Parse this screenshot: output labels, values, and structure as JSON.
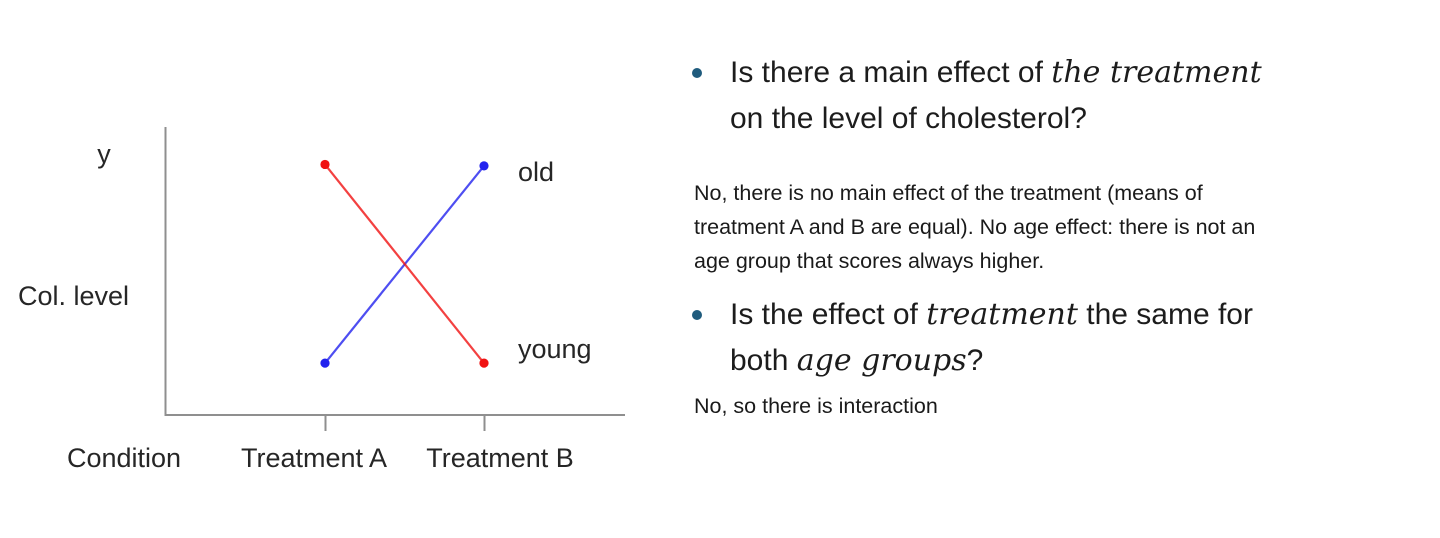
{
  "chart_data": {
    "type": "line",
    "title": "",
    "xlabel": "Condition",
    "ylabel": "Col. level",
    "y_axis_top_label": "y",
    "categories": [
      "Treatment A",
      "Treatment B"
    ],
    "series": [
      {
        "name": "old",
        "color": "#2222ee",
        "values": [
          0.18,
          0.865
        ]
      },
      {
        "name": "young",
        "color": "#f01212",
        "values": [
          0.87,
          0.18
        ]
      }
    ],
    "ylim": [
      0,
      1
    ],
    "grid": false,
    "legend_position": "labels-at-right-line-ends",
    "axis_color": "#8f8f8f"
  },
  "qa_panel": {
    "bullet_color": "#1f5b7d",
    "bullets": [
      {
        "question_runs": [
          {
            "t": "Is there a main effect of "
          },
          {
            "t": "the treatment",
            "i": true
          },
          {
            "br": true
          },
          {
            "t": "on the level of cholesterol?"
          }
        ],
        "answer": "No, there is no main effect of the treatment (means of\ntreatment A and B are equal). No age effect: there is not an\nage group that scores always higher."
      },
      {
        "question_runs": [
          {
            "t": "Is the effect of "
          },
          {
            "t": "treatment",
            "i": true
          },
          {
            "t": " the same for"
          },
          {
            "br": true
          },
          {
            "t": "both "
          },
          {
            "t": "age groups",
            "i": true
          },
          {
            "t": "?"
          }
        ],
        "answer": "No, so there is interaction"
      }
    ]
  }
}
